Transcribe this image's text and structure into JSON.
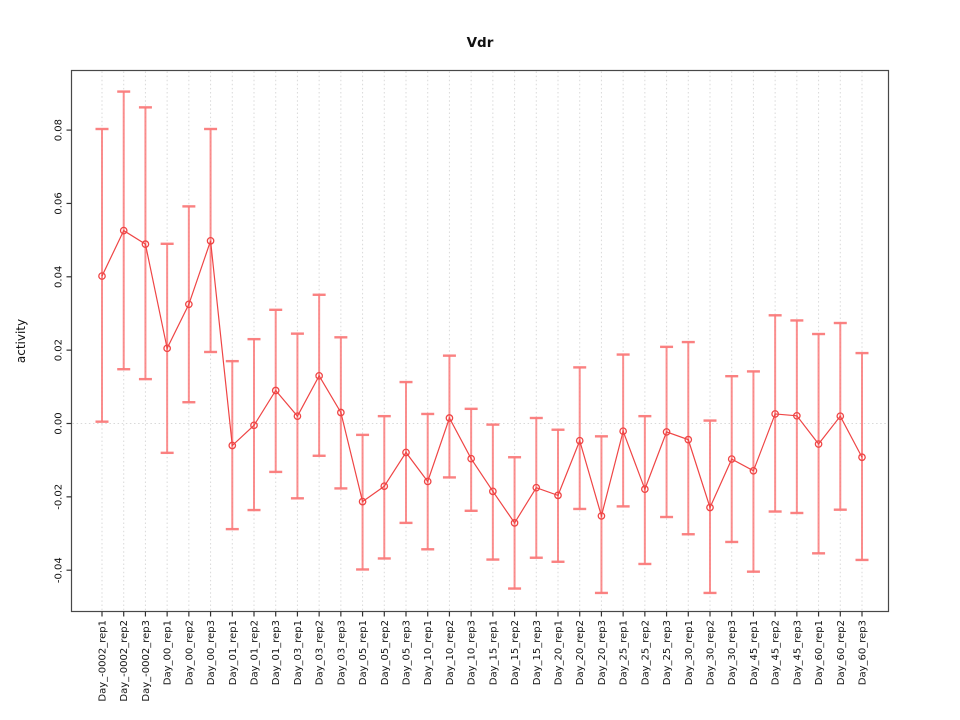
{
  "chart_data": {
    "type": "scatter",
    "title": "Vdr",
    "ylabel": "activity",
    "xlabel": "",
    "legend": null,
    "grid": "vertical dotted gridline at every category; dotted horizontal line at y=0",
    "marker": "open-circle with symmetric error bars and connecting line",
    "ylim": [
      -0.049,
      0.094
    ],
    "y_ticks": [
      0.08,
      0.06,
      0.04,
      0.02,
      0.0,
      -0.02,
      -0.04
    ],
    "y_tick_labels": [
      "0.08",
      "0.06",
      "0.04",
      "0.02",
      "0.00",
      "-0.02",
      "-0.04"
    ],
    "categories": [
      "Day_-0002_rep1",
      "Day_-0002_rep2",
      "Day_-0002_rep3",
      "Day_00_rep1",
      "Day_00_rep2",
      "Day_00_rep3",
      "Day_01_rep1",
      "Day_01_rep2",
      "Day_01_rep3",
      "Day_03_rep1",
      "Day_03_rep2",
      "Day_03_rep3",
      "Day_05_rep1",
      "Day_05_rep2",
      "Day_05_rep3",
      "Day_10_rep1",
      "Day_10_rep2",
      "Day_10_rep3",
      "Day_15_rep1",
      "Day_15_rep2",
      "Day_15_rep3",
      "Day_20_rep1",
      "Day_20_rep2",
      "Day_20_rep3",
      "Day_25_rep1",
      "Day_25_rep2",
      "Day_25_rep3",
      "Day_30_rep1",
      "Day_30_rep2",
      "Day_30_rep3",
      "Day_45_rep1",
      "Day_45_rep2",
      "Day_45_rep3",
      "Day_60_rep1",
      "Day_60_rep2",
      "Day_60_rep3"
    ],
    "series": [
      {
        "name": "activity",
        "values": [
          0.0402,
          0.0526,
          0.0489,
          0.0205,
          0.0325,
          0.0498,
          -0.006,
          -0.0005,
          0.009,
          0.002,
          0.013,
          0.003,
          -0.0213,
          -0.0171,
          -0.0079,
          -0.0158,
          0.0015,
          -0.0096,
          -0.0185,
          -0.0271,
          -0.0175,
          -0.0196,
          -0.0047,
          -0.0252,
          -0.0021,
          -0.0179,
          -0.0023,
          -0.0044,
          -0.0229,
          -0.0097,
          -0.0129,
          0.0026,
          0.0021,
          -0.0056,
          0.002,
          -0.0092
        ],
        "lower": [
          0.0005,
          0.0148,
          0.0121,
          -0.008,
          0.0058,
          0.0195,
          -0.0288,
          -0.0236,
          -0.0132,
          -0.0204,
          -0.0088,
          -0.0177,
          -0.0398,
          -0.0368,
          -0.0271,
          -0.0343,
          -0.0147,
          -0.0238,
          -0.0371,
          -0.045,
          -0.0366,
          -0.0377,
          -0.0233,
          -0.0462,
          -0.0226,
          -0.0383,
          -0.0255,
          -0.0302,
          -0.0462,
          -0.0323,
          -0.0404,
          -0.024,
          -0.0244,
          -0.0354,
          -0.0235,
          -0.0372
        ],
        "upper": [
          0.0803,
          0.0905,
          0.0862,
          0.049,
          0.0592,
          0.0803,
          0.017,
          0.023,
          0.031,
          0.0245,
          0.0351,
          0.0235,
          -0.0031,
          0.002,
          0.0113,
          0.0026,
          0.0185,
          0.004,
          -0.0003,
          -0.0092,
          0.0015,
          -0.0017,
          0.0153,
          -0.0035,
          0.0188,
          0.002,
          0.0209,
          0.0222,
          0.0008,
          0.0129,
          0.0142,
          0.0295,
          0.0281,
          0.0244,
          0.0274,
          0.0192
        ]
      }
    ]
  },
  "colors": {
    "error_bar": "#fa7a7a",
    "series_line": "#ef4545",
    "marker": "#ef4545",
    "gridline": "#d9d9d9",
    "zero_line": "#d9d9d9",
    "box_border": "#484848",
    "tick": "#333333",
    "text": "#111111",
    "background": "#ffffff"
  }
}
